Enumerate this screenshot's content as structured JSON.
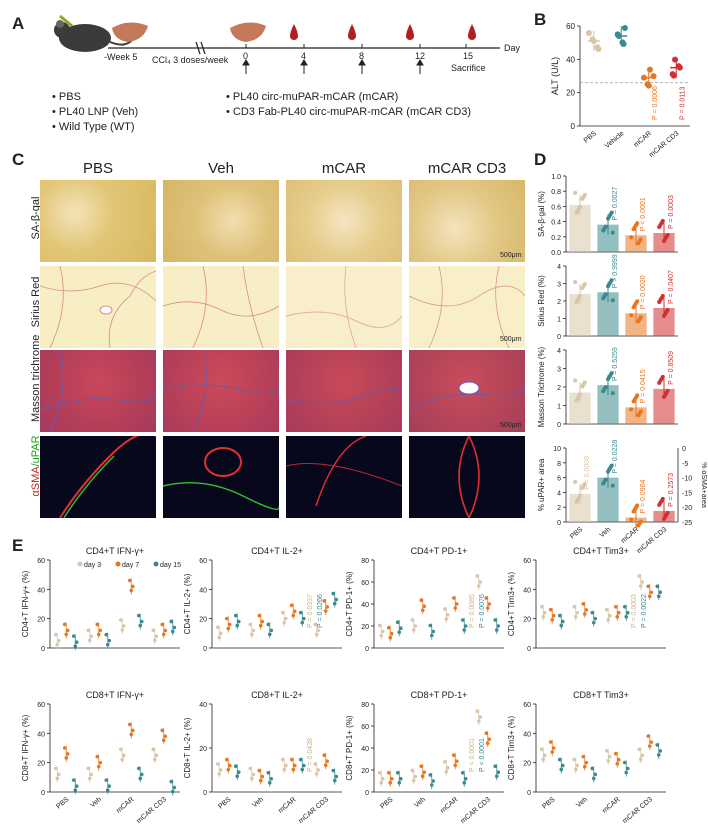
{
  "panel_labels": {
    "a": "A",
    "b": "B",
    "c": "C",
    "d": "D",
    "e": "E"
  },
  "panel_a": {
    "week_label": "-Week 5",
    "ccl4_label": "CCl₄ 3 doses/week",
    "day_ticks": [
      "0",
      "4",
      "8",
      "12",
      "15"
    ],
    "day_axis": "Day",
    "sacrifice": "Sacrifice",
    "groups_left": [
      "• PBS",
      "• PL40 LNP (Veh)",
      "• Wild Type (WT)"
    ],
    "groups_right": [
      "• PL40 circ-muPAR-mCAR (mCAR)",
      "• CD3 Fab-PL40 circ-muPAR-mCAR (mCAR CD3)"
    ]
  },
  "panel_c": {
    "columns": [
      "PBS",
      "Veh",
      "mCAR",
      "mCAR CD3"
    ],
    "rows": [
      "SA-β-gal",
      "Sirius Red",
      "Masson trichrome"
    ],
    "row4_a": "αSMA",
    "row4_b": "/uPAR",
    "scale_bar": "500μm"
  },
  "colors": {
    "pbs": "#d9c6a8",
    "veh": "#3a8a8e",
    "mcar": "#e8761f",
    "mcar_cd3": "#d03030",
    "grey": "#999999"
  },
  "chart_data": [
    {
      "panel": "B",
      "type": "scatter",
      "ylabel": "ALT (U/L)",
      "ylim": [
        0,
        60
      ],
      "yticks": [
        "0",
        "20",
        "40",
        "60"
      ],
      "categories": [
        "PBS",
        "Vehicle",
        "mCAR",
        "mCAR CD3"
      ],
      "values": [
        51,
        54,
        29,
        35
      ],
      "ref_line": 26,
      "pvalues": [
        "",
        "",
        "P = 0.0006",
        "P = 0.0113"
      ]
    },
    {
      "panel": "D1",
      "type": "bar",
      "ylabel": "SA-β-gal (%)",
      "ylim": [
        0,
        1.0
      ],
      "yticks": [
        "0.0",
        "0.2",
        "0.4",
        "0.6",
        "0.8",
        "1.0"
      ],
      "categories": [
        "PBS",
        "Veh",
        "mCAR",
        "mCAR CD3"
      ],
      "values": [
        0.62,
        0.36,
        0.22,
        0.25
      ],
      "pvalues": [
        "",
        "P = 0.0027",
        "P < 0.0001",
        "P = 0.0003"
      ]
    },
    {
      "panel": "D2",
      "type": "bar",
      "ylabel": "Sirius Red (%)",
      "ylim": [
        0,
        4
      ],
      "yticks": [
        "0",
        "1",
        "2",
        "3",
        "4"
      ],
      "categories": [
        "PBS",
        "Veh",
        "mCAR",
        "mCAR CD3"
      ],
      "values": [
        2.4,
        2.5,
        1.3,
        1.6
      ],
      "pvalues": [
        "",
        "P > 0.9999",
        "P = 0.0020",
        "P = 0.0407"
      ]
    },
    {
      "panel": "D3",
      "type": "bar",
      "ylabel": "Masson Trichrome (%)",
      "ylim": [
        0,
        4
      ],
      "yticks": [
        "0",
        "1",
        "2",
        "3",
        "4"
      ],
      "categories": [
        "PBS",
        "Veh",
        "mCAR",
        "mCAR CD3"
      ],
      "values": [
        1.7,
        2.1,
        0.9,
        1.9
      ],
      "pvalues": [
        "",
        "P = 0.5259",
        "P = 0.0415",
        "P = 0.8509"
      ]
    },
    {
      "panel": "D4",
      "type": "bar",
      "ylabel": "% uPAR+ area",
      "ylabel_right": "% αSMA+area",
      "ylim": [
        0,
        10
      ],
      "yticks": [
        "0",
        "2",
        "4",
        "6",
        "8",
        "10"
      ],
      "yticks_right": [
        "0",
        "-5",
        "-10",
        "-15",
        "-20",
        "-25"
      ],
      "categories": [
        "PBS",
        "Veh",
        "mCAR",
        "mCAR CD3"
      ],
      "values": [
        3.8,
        6.0,
        0.6,
        1.5
      ],
      "values_right": [
        -2,
        -4,
        -2,
        -3
      ],
      "pvalues": [
        "P = 0.0008",
        "P = 0.0228",
        "P = 0.0964",
        "P = 0.2573"
      ]
    },
    {
      "panel": "E",
      "type": "scatter",
      "series": [
        {
          "name": "day 3"
        },
        {
          "name": "day 7"
        },
        {
          "name": "day 15"
        }
      ],
      "categories": [
        "PBS",
        "Veh",
        "mCAR",
        "mCAR CD3"
      ],
      "plots": [
        {
          "title": "CD4+T IFN-γ+",
          "ylabel": "CD4+T IFN-γ+ (%)",
          "yticks": [
            "0",
            "20",
            "40",
            "60"
          ],
          "ymax": 60,
          "values": [
            [
              5,
              12,
              4
            ],
            [
              8,
              12,
              5
            ],
            [
              15,
              42,
              18
            ],
            [
              8,
              12,
              14
            ]
          ],
          "pvalues": []
        },
        {
          "title": "CD4+T IL-2+",
          "ylabel": "CD4+T IL-2+ (%)",
          "yticks": [
            "0",
            "20",
            "40",
            "60"
          ],
          "ymax": 60,
          "values": [
            [
              10,
              16,
              18
            ],
            [
              12,
              18,
              12
            ],
            [
              20,
              25,
              20
            ],
            [
              12,
              28,
              33
            ]
          ],
          "pvalues": [
            "P = 0.0337",
            "P = 0.0266"
          ]
        },
        {
          "title": "CD4+T PD-1+",
          "ylabel": "CD4+T PD-1+ (%)",
          "yticks": [
            "0",
            "20",
            "40",
            "60",
            "80"
          ],
          "ymax": 80,
          "values": [
            [
              15,
              13,
              18
            ],
            [
              20,
              38,
              15
            ],
            [
              30,
              40,
              20
            ],
            [
              60,
              40,
              20
            ]
          ],
          "pvalues": [
            "P = 0.0085",
            "P = 0.0076"
          ]
        },
        {
          "title": "CD4+T Tim3+",
          "ylabel": "CD4+T Tim3+ (%)",
          "yticks": [
            "0",
            "20",
            "40",
            "60"
          ],
          "ymax": 60,
          "values": [
            [
              24,
              22,
              18
            ],
            [
              24,
              26,
              20
            ],
            [
              22,
              24,
              24
            ],
            [
              45,
              38,
              38
            ]
          ],
          "pvalues": [
            "P = 0.0003",
            "P = 0.0022"
          ]
        },
        {
          "title": "CD8+T IFN-γ+",
          "ylabel": "CD8+T IFN-γ+ (%)",
          "yticks": [
            "0",
            "20",
            "40",
            "60"
          ],
          "ymax": 60,
          "values": [
            [
              12,
              26,
              4
            ],
            [
              12,
              20,
              4
            ],
            [
              25,
              42,
              12
            ],
            [
              25,
              38,
              3
            ]
          ],
          "pvalues": []
        },
        {
          "title": "CD8+T IL-2+",
          "ylabel": "CD8+T IL-2+ (%)",
          "yticks": [
            "0",
            "20",
            "40"
          ],
          "ymax": 40,
          "values": [
            [
              10,
              12,
              9
            ],
            [
              8,
              7,
              6
            ],
            [
              12,
              12,
              12
            ],
            [
              10,
              14,
              7
            ]
          ],
          "pvalues": [
            "P = 0.0438"
          ]
        },
        {
          "title": "CD8+T PD-1+",
          "ylabel": "CD8+T PD-1+ (%)",
          "yticks": [
            "0",
            "20",
            "40",
            "60",
            "80"
          ],
          "ymax": 80,
          "values": [
            [
              12,
              12,
              12
            ],
            [
              14,
              18,
              10
            ],
            [
              22,
              28,
              12
            ],
            [
              68,
              48,
              18
            ]
          ],
          "pvalues": [
            "P < 0.0001",
            "P < 0.0001"
          ]
        },
        {
          "title": "CD8+T Tim3+",
          "ylabel": "CD8+T Tim3+ (%)",
          "yticks": [
            "0",
            "20",
            "40",
            "60"
          ],
          "ymax": 60,
          "values": [
            [
              25,
              30,
              18
            ],
            [
              18,
              20,
              12
            ],
            [
              24,
              22,
              16
            ],
            [
              25,
              34,
              28
            ]
          ],
          "pvalues": []
        }
      ]
    }
  ]
}
